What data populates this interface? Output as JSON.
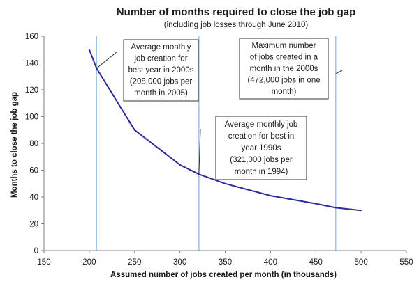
{
  "chart_data": {
    "type": "line",
    "title": "Number of months required to close the job gap",
    "subtitle": "(including job losses through June  2010)",
    "xlabel": "Assumed number of jobs created per month (in thousands)",
    "ylabel": "Months  to close the job gap",
    "xlim": [
      150,
      550
    ],
    "ylim": [
      0,
      160
    ],
    "xticks": [
      150,
      200,
      250,
      300,
      350,
      400,
      450,
      500,
      550
    ],
    "yticks": [
      0,
      20,
      40,
      60,
      80,
      100,
      120,
      140,
      160
    ],
    "grid": false,
    "series": [
      {
        "color": "#2b2b9e",
        "x": [
          200,
          208,
          250,
          300,
          321,
          350,
          400,
          450,
          472,
          500
        ],
        "y": [
          150,
          136,
          90,
          64,
          57,
          50,
          41,
          35,
          32,
          30
        ]
      }
    ],
    "reference_lines": {
      "color": "#9dc3e6",
      "x": [
        208,
        321,
        472
      ]
    },
    "annotations": [
      {
        "lines": [
          "Average monthly",
          "job creation for",
          "best year in 2000s",
          "(208,000 jobs per",
          "month in 2005)"
        ],
        "target": [
          208,
          136
        ]
      },
      {
        "lines": [
          "Maximum number",
          "of jobs created in a",
          "month in the 2000s",
          "(472,000 jobs in one",
          "month)"
        ],
        "target": [
          472,
          132
        ]
      },
      {
        "lines": [
          "Average monthly job",
          "creation for best in",
          "year 1990s",
          "(321,000 jobs per",
          "month in 1994)"
        ],
        "target": [
          321,
          57
        ]
      }
    ]
  }
}
